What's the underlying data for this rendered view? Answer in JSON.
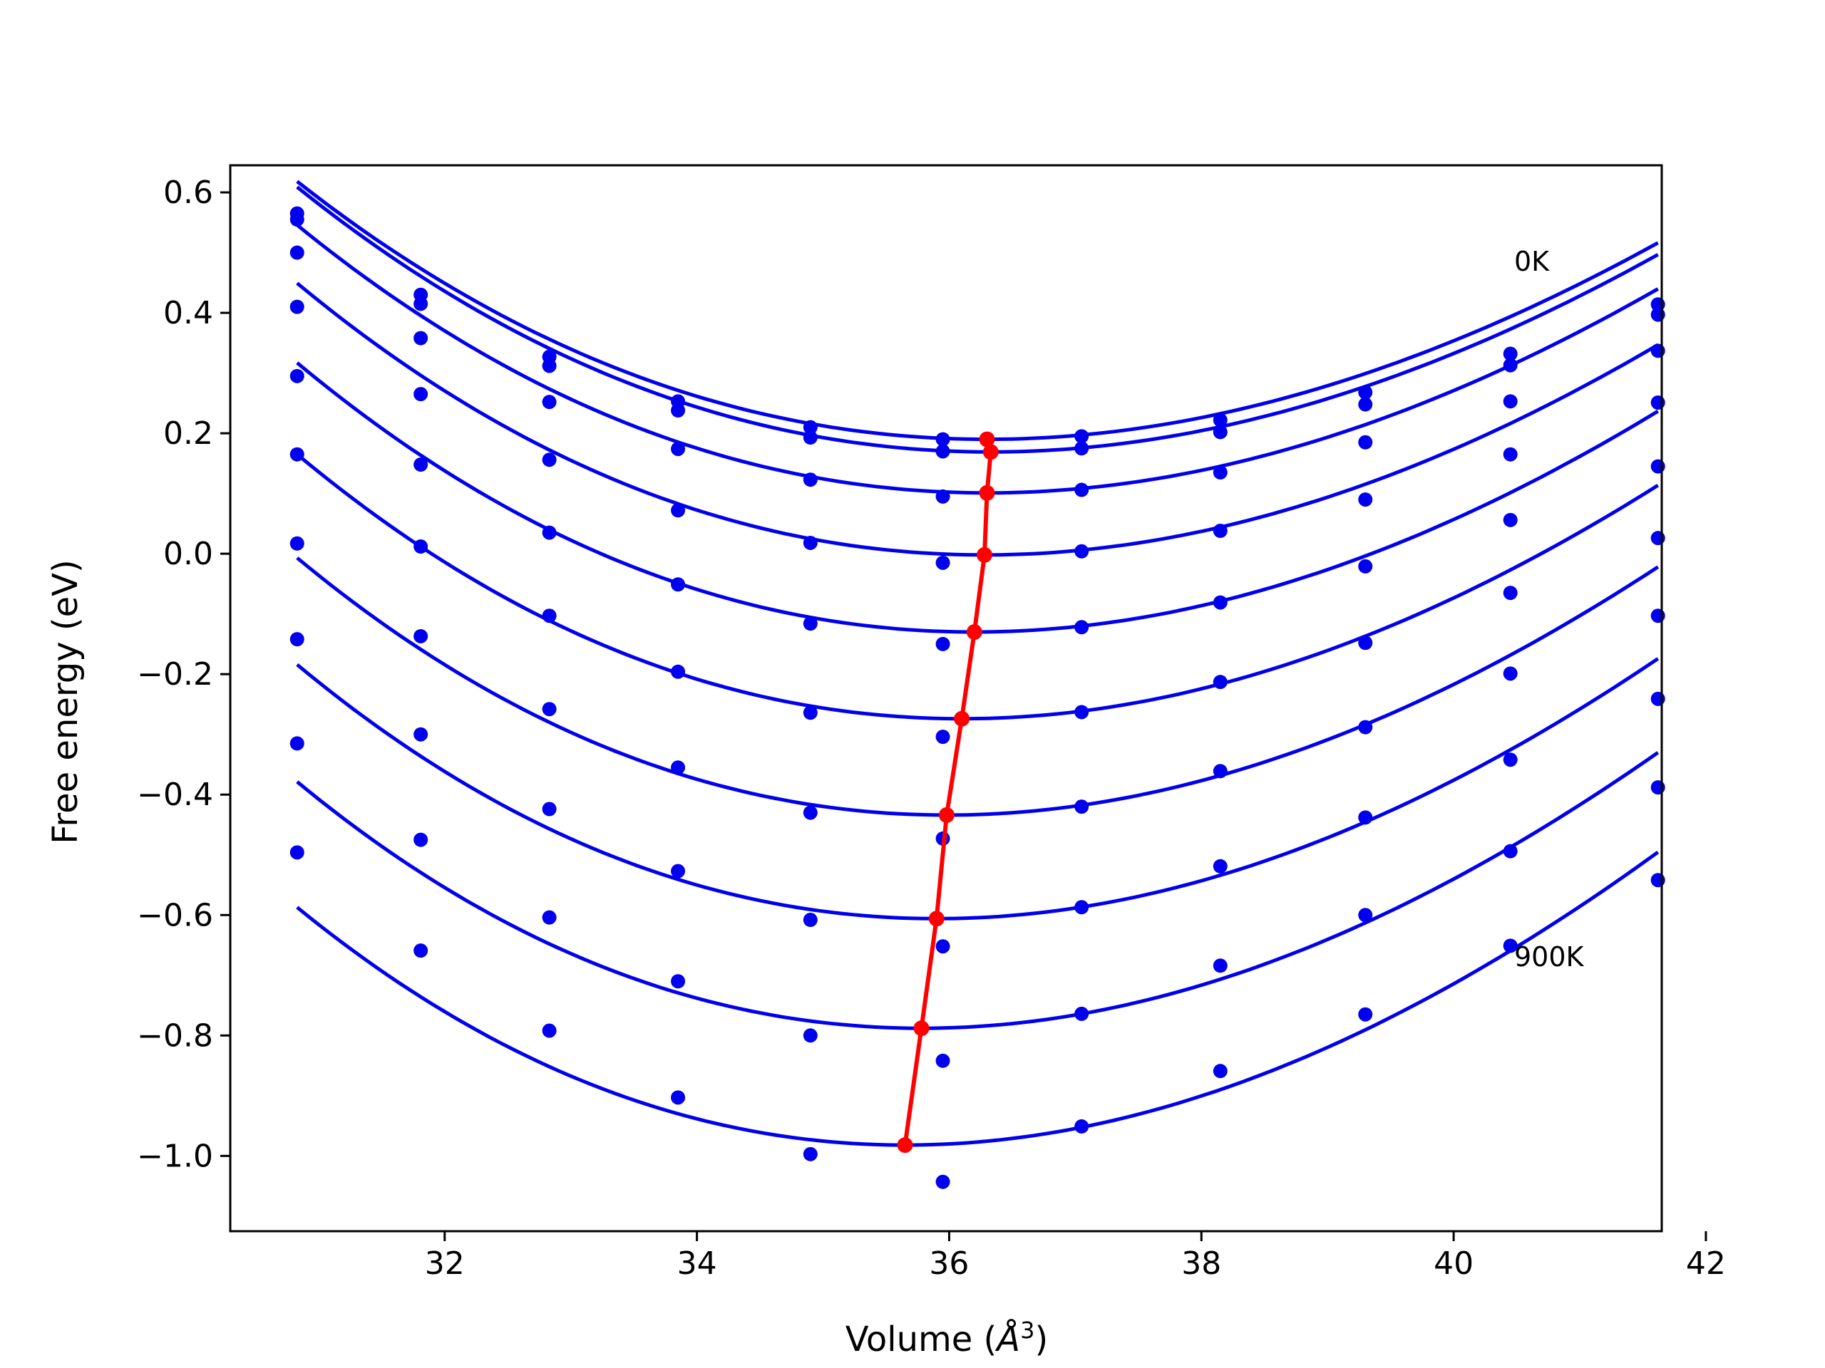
{
  "chart_data": {
    "type": "line",
    "xlabel": "Volume (",
    "xlabel_symbol": "Å",
    "xlabel_exponent": "3",
    "xlabel_close": ")",
    "ylabel": "Free energy (eV)",
    "xlim": [
      30.3,
      41.6
    ],
    "ylim": [
      -1.125,
      0.645
    ],
    "xticks": [
      32,
      34,
      36,
      38,
      40,
      42
    ],
    "xtick_labels": [
      "32",
      "34",
      "36",
      "38",
      "40",
      "42"
    ],
    "yticks": [
      0.6,
      0.4,
      0.2,
      0.0,
      -0.2,
      -0.4,
      -0.6,
      -0.8,
      -1.0
    ],
    "ytick_labels": [
      "0.6",
      "0.4",
      "0.2",
      "0.0",
      "−0.2",
      "−0.4",
      "−0.6",
      "−0.8",
      "−1.0"
    ],
    "grid": false,
    "series_color": "#0000ee",
    "minimum_line_color": "#ff0000",
    "annotations": [
      {
        "text": "0K",
        "x": 40.48,
        "y": 0.47
      },
      {
        "text": "900K",
        "x": 40.48,
        "y": -0.685
      }
    ],
    "volumes": [
      30.83,
      31.81,
      32.83,
      33.85,
      34.9,
      35.95,
      37.05,
      38.15,
      39.3,
      40.45,
      41.62
    ],
    "series": [
      {
        "points": [
          0.565,
          0.43,
          0.327,
          0.253,
          0.21,
          0.19,
          0.195,
          0.222,
          0.268,
          0.332,
          0.414
        ],
        "fit": {
          "c": 0.19,
          "v0": 36.3,
          "a": 0.0129
        }
      },
      {
        "points": [
          0.555,
          0.415,
          0.312,
          0.238,
          0.193,
          0.17,
          0.175,
          0.202,
          0.248,
          0.313,
          0.397
        ],
        "fit": {
          "c": 0.169,
          "v0": 36.33,
          "a": 0.0131
        }
      },
      {
        "points": [
          0.5,
          0.358,
          0.252,
          0.174,
          0.123,
          0.095,
          0.106,
          0.135,
          0.185,
          0.253,
          0.337
        ],
        "fit": {
          "c": 0.101,
          "v0": 36.3,
          "a": 0.0134
        }
      },
      {
        "points": [
          0.41,
          0.265,
          0.156,
          0.072,
          0.018,
          -0.015,
          0.004,
          0.038,
          0.09,
          0.165,
          0.251
        ],
        "fit": {
          "c": -0.002,
          "v0": 36.28,
          "a": 0.0137
        }
      },
      {
        "points": [
          0.295,
          0.148,
          0.035,
          -0.051,
          -0.116,
          -0.15,
          -0.122,
          -0.081,
          -0.021,
          0.056,
          0.145
        ],
        "fit": {
          "c": -0.13,
          "v0": 36.2,
          "a": 0.014
        }
      },
      {
        "points": [
          0.165,
          0.012,
          -0.103,
          -0.196,
          -0.264,
          -0.304,
          -0.263,
          -0.213,
          -0.148,
          -0.065,
          0.026
        ],
        "fit": {
          "c": -0.274,
          "v0": 36.1,
          "a": 0.0143
        }
      },
      {
        "points": [
          0.017,
          -0.137,
          -0.258,
          -0.355,
          -0.43,
          -0.473,
          -0.42,
          -0.361,
          -0.288,
          -0.199,
          -0.103
        ],
        "fit": {
          "c": -0.434,
          "v0": 35.98,
          "a": 0.0146
        }
      },
      {
        "points": [
          -0.142,
          -0.3,
          -0.424,
          -0.527,
          -0.608,
          -0.652,
          -0.587,
          -0.519,
          -0.438,
          -0.342,
          -0.241
        ],
        "fit": {
          "c": -0.606,
          "v0": 35.9,
          "a": 0.0149
        }
      },
      {
        "points": [
          -0.315,
          -0.475,
          -0.604,
          -0.71,
          -0.8,
          -0.842,
          -0.764,
          -0.684,
          -0.6,
          -0.494,
          -0.388
        ],
        "fit": {
          "c": -0.788,
          "v0": 35.78,
          "a": 0.0152
        }
      },
      {
        "points": [
          -0.496,
          -0.659,
          -0.792,
          -0.903,
          -0.997,
          -1.043,
          -0.951,
          -0.859,
          -0.765,
          -0.651,
          -0.542
        ],
        "fit": {
          "c": -0.982,
          "v0": 35.65,
          "a": 0.0155
        }
      }
    ],
    "minimum_line": {
      "x": [
        36.3,
        36.33,
        36.3,
        36.28,
        36.2,
        36.1,
        35.98,
        35.9,
        35.78,
        35.65
      ],
      "y": [
        0.19,
        0.169,
        0.101,
        -0.002,
        -0.13,
        -0.274,
        -0.434,
        -0.606,
        -0.788,
        -0.982
      ]
    }
  }
}
